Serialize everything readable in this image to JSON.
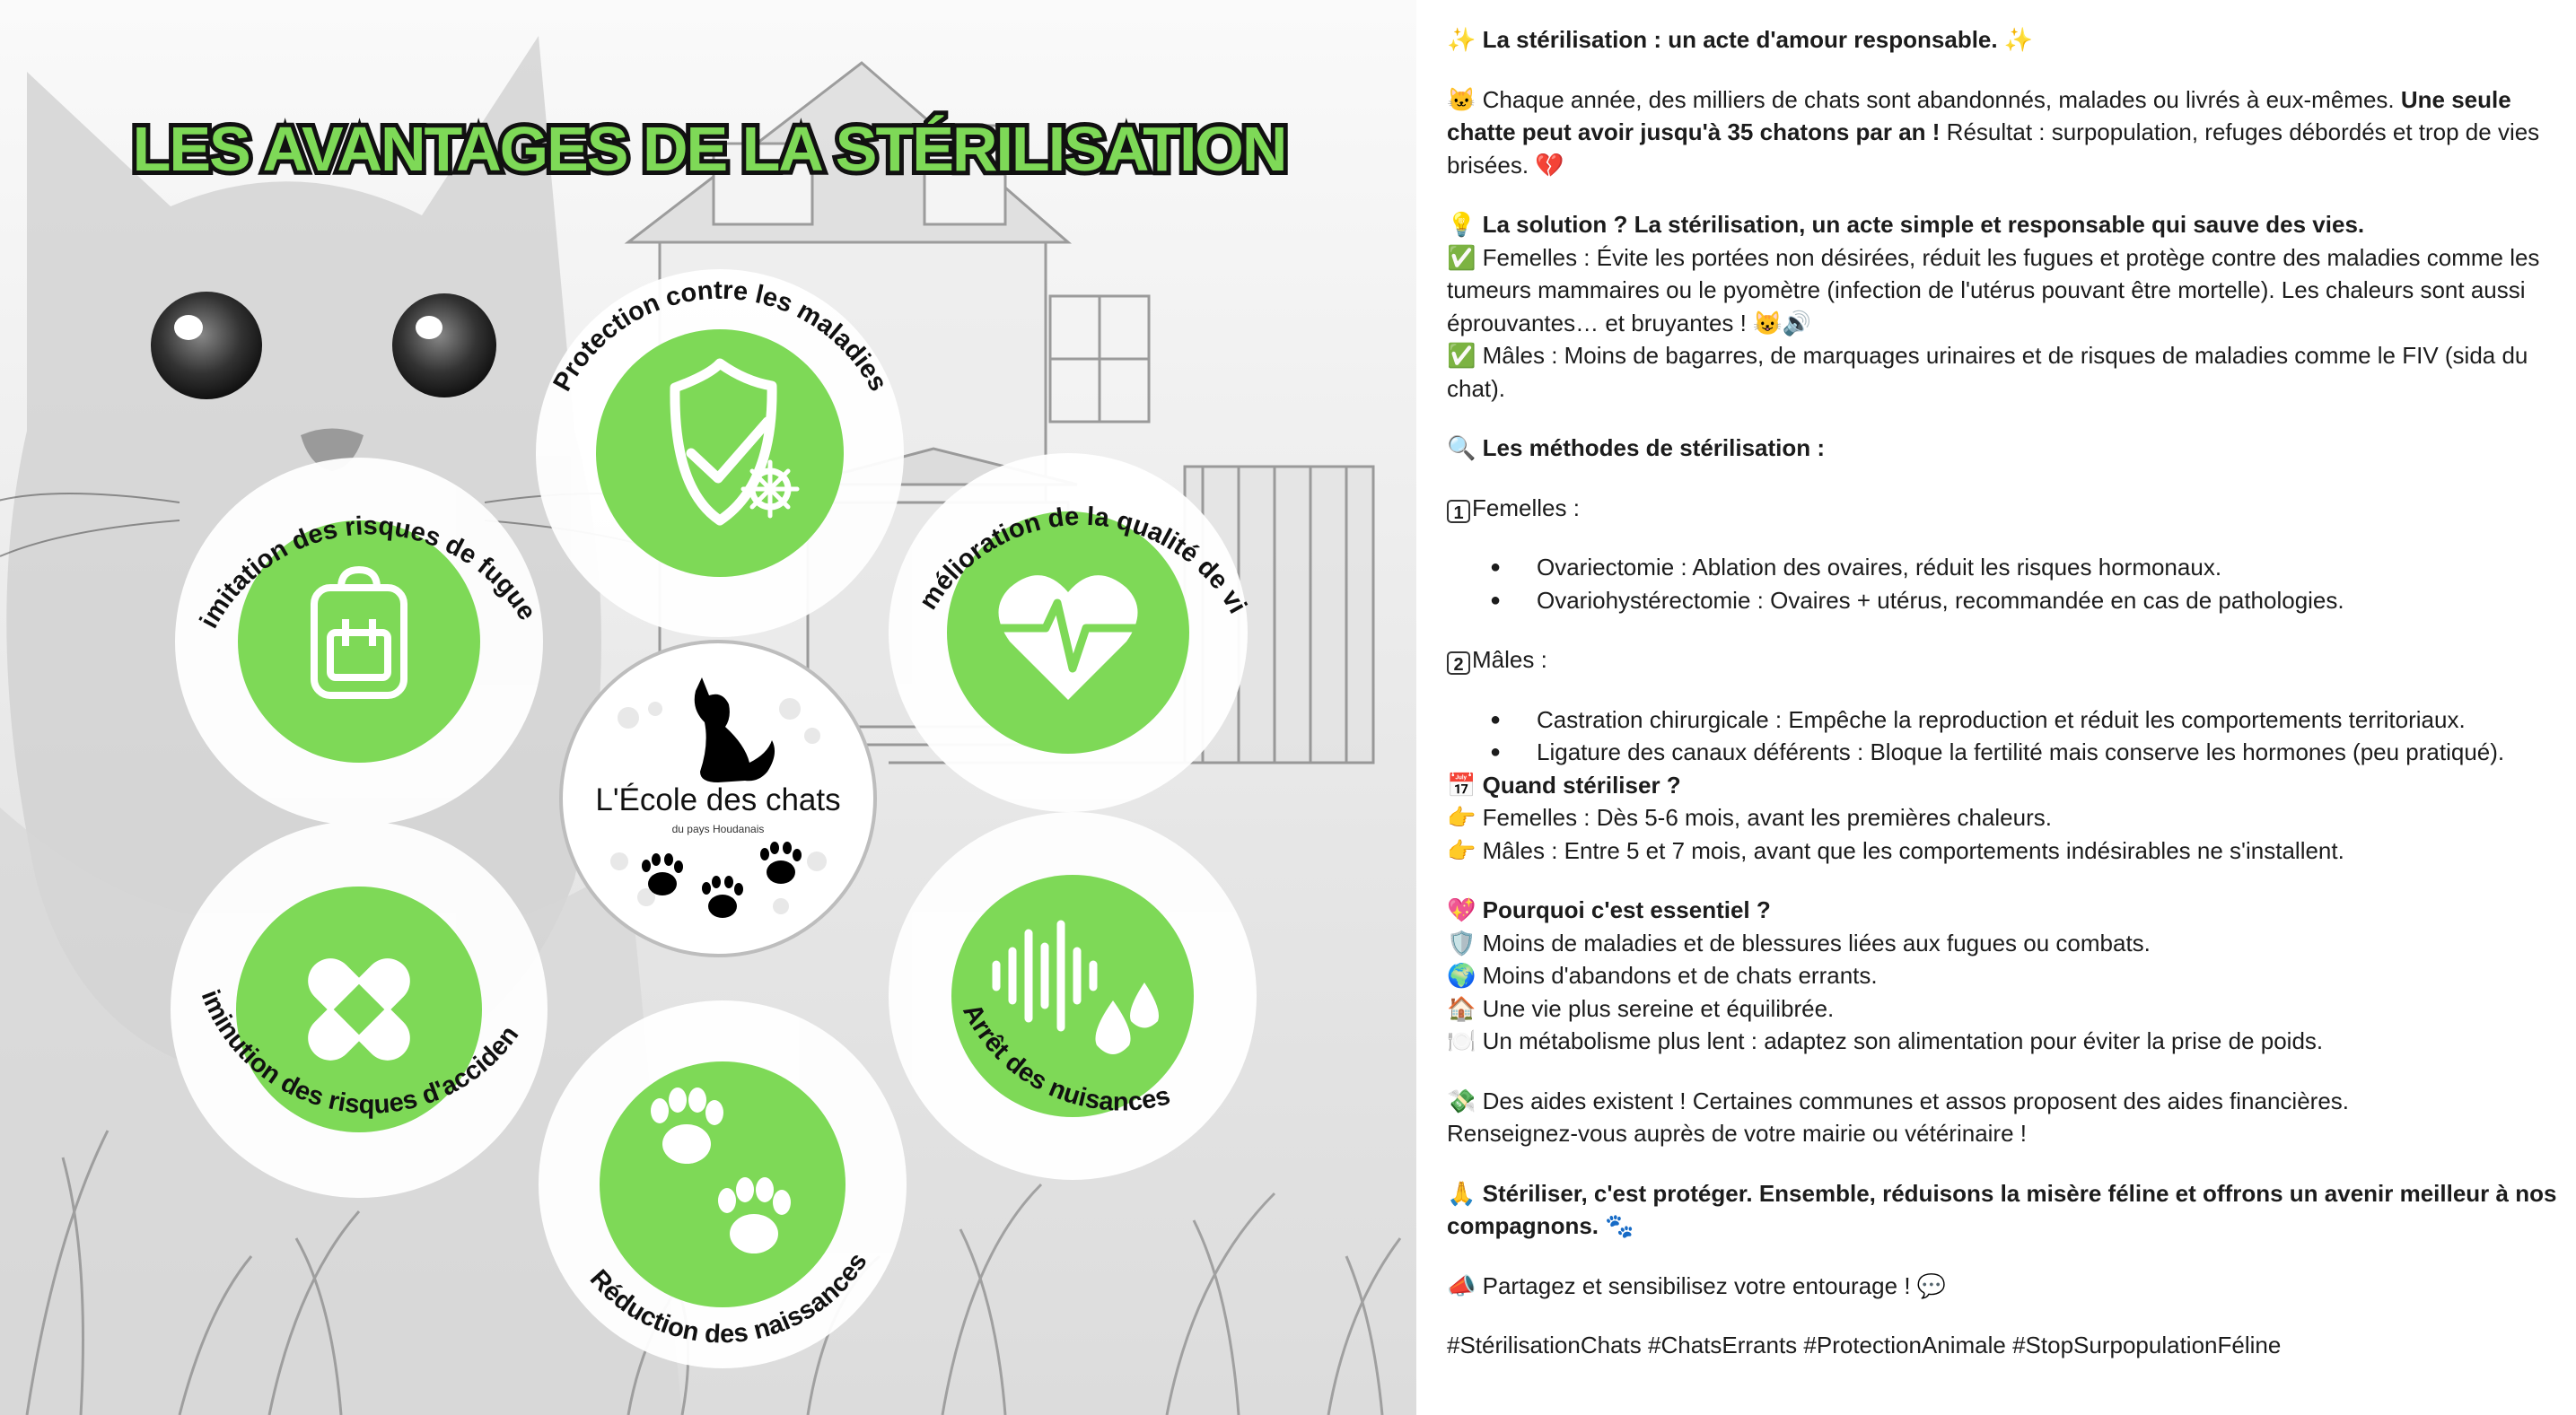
{
  "poster": {
    "title": "LES AVANTAGES DE LA STÉRILISATION",
    "accent_color": "#7ed957",
    "benefits": [
      {
        "label": "Protection contre les maladies",
        "icon": "shield-check-virus-icon"
      },
      {
        "label": "Amélioration de la qualité de vie",
        "icon": "heart-pulse-icon"
      },
      {
        "label": "Arrêt des nuisances",
        "icon": "sound-wave-drops-icon"
      },
      {
        "label": "Réduction des naissances",
        "icon": "paw-prints-icon"
      },
      {
        "label": "Diminution des risques d'accidents",
        "icon": "bandage-icon"
      },
      {
        "label": "Limitation des risques de fugues",
        "icon": "backpack-icon"
      }
    ],
    "logo": {
      "name": "L'École des chats",
      "subtitle": "du pays Houdanais"
    }
  },
  "post": {
    "title": {
      "emoji_left": "✨",
      "text": "La stérilisation : un acte d'amour responsable.",
      "emoji_right": "✨"
    },
    "intro": {
      "emoji": "🐱",
      "text_1": "Chaque année, des milliers de chats sont abandonnés, malades ou livrés à eux-mêmes.",
      "bold": "Une seule chatte peut avoir jusqu'à 35 chatons par an !",
      "text_2": "Résultat : surpopulation, refuges débordés et trop de vies brisées.",
      "emoji_end": "💔"
    },
    "solution": {
      "emoji": "💡",
      "heading": "La solution ? La stérilisation, un acte simple et responsable qui sauve des vies.",
      "females": {
        "emoji": "✅",
        "text": "Femelles : Évite les portées non désirées, réduit les fugues et protège contre des maladies comme les tumeurs mammaires ou le pyomètre (infection de l'utérus pouvant être mortelle). Les chaleurs sont aussi éprouvantes… et bruyantes !",
        "emoji_end": "😺🔊"
      },
      "males": {
        "emoji": "✅",
        "text": "Mâles : Moins de bagarres, de marquages urinaires et de risques de maladies comme le FIV (sida du chat)."
      }
    },
    "methods": {
      "emoji": "🔍",
      "heading": "Les méthodes de stérilisation :",
      "female_num": "1",
      "female_label": "Femelles :",
      "female_items": [
        "Ovariectomie : Ablation des ovaires, réduit les risques hormonaux.",
        "Ovariohystérectomie : Ovaires + utérus, recommandée en cas de pathologies."
      ],
      "male_num": "2",
      "male_label": "Mâles :",
      "male_items": [
        "Castration chirurgicale : Empêche la reproduction et réduit les comportements territoriaux.",
        "Ligature des canaux déférents : Bloque la fertilité mais conserve les hormones (peu pratiqué)."
      ]
    },
    "when": {
      "emoji": "📅",
      "heading": "Quand stériliser ?",
      "items": [
        {
          "emoji": "👉",
          "text": "Femelles : Dès 5-6 mois, avant les premières chaleurs."
        },
        {
          "emoji": "👉",
          "text": "Mâles : Entre 5 et 7 mois, avant que les comportements indésirables ne s'installent."
        }
      ]
    },
    "why": {
      "emoji": "💖",
      "heading": "Pourquoi c'est essentiel ?",
      "items": [
        {
          "emoji": "🛡️",
          "text": "Moins de maladies et de blessures liées aux fugues ou combats."
        },
        {
          "emoji": "🌍",
          "text": "Moins d'abandons et de chats errants."
        },
        {
          "emoji": "🏠",
          "text": "Une vie plus sereine et équilibrée."
        },
        {
          "emoji": "🍽️",
          "text": "Un métabolisme plus lent : adaptez son alimentation pour éviter la prise de poids."
        }
      ]
    },
    "aid": {
      "emoji": "💸",
      "line_1": "Des aides existent ! Certaines communes et assos proposent des aides financières.",
      "line_2": "Renseignez-vous auprès de votre mairie ou vétérinaire !"
    },
    "closing": {
      "emoji": "🙏",
      "text": "Stériliser, c'est protéger. Ensemble, réduisons la misère féline et offrons un avenir meilleur à nos compagnons.",
      "emoji_end": "🐾"
    },
    "share": {
      "emoji": "📣",
      "text": "Partagez et sensibilisez votre entourage !",
      "emoji_end": "💬"
    },
    "hashtags": "#StérilisationChats #ChatsErrants #ProtectionAnimale #StopSurpopulationFéline"
  }
}
